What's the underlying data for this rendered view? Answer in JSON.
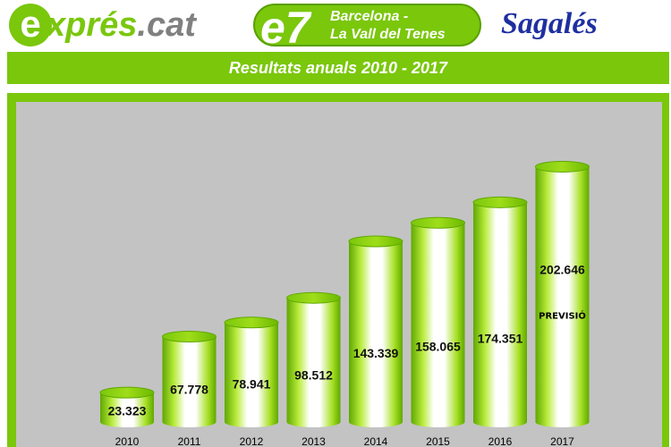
{
  "header": {
    "expres_logo": {
      "e": "e",
      "main": "xprés",
      "suffix": ".cat"
    },
    "route": {
      "number": "e7",
      "line1": "Barcelona -",
      "line2": "La Vall del Tenes"
    },
    "operator": "Sagalés"
  },
  "colors": {
    "brand_green": "#7ac70c",
    "panel_grey": "#c3c3c3",
    "sagales_blue": "#1e2fa0"
  },
  "chart_data": {
    "type": "bar",
    "title": "Resultats anuals 2010 - 2017",
    "categories": [
      "2010",
      "2011",
      "2012",
      "2013",
      "2014",
      "2015",
      "2016",
      "2017"
    ],
    "values": [
      23323,
      67778,
      78941,
      98512,
      143339,
      158065,
      174351,
      202646
    ],
    "value_labels": [
      "23.323",
      "67.778",
      "78.941",
      "98.512",
      "143.339",
      "158.065",
      "174.351",
      "202.646"
    ],
    "annotations": [
      {
        "category": "2017",
        "text": "PREVISIÓ"
      }
    ],
    "ylim": [
      0,
      220000
    ],
    "grid": false,
    "legend": "none",
    "xlabel": "",
    "ylabel": ""
  }
}
